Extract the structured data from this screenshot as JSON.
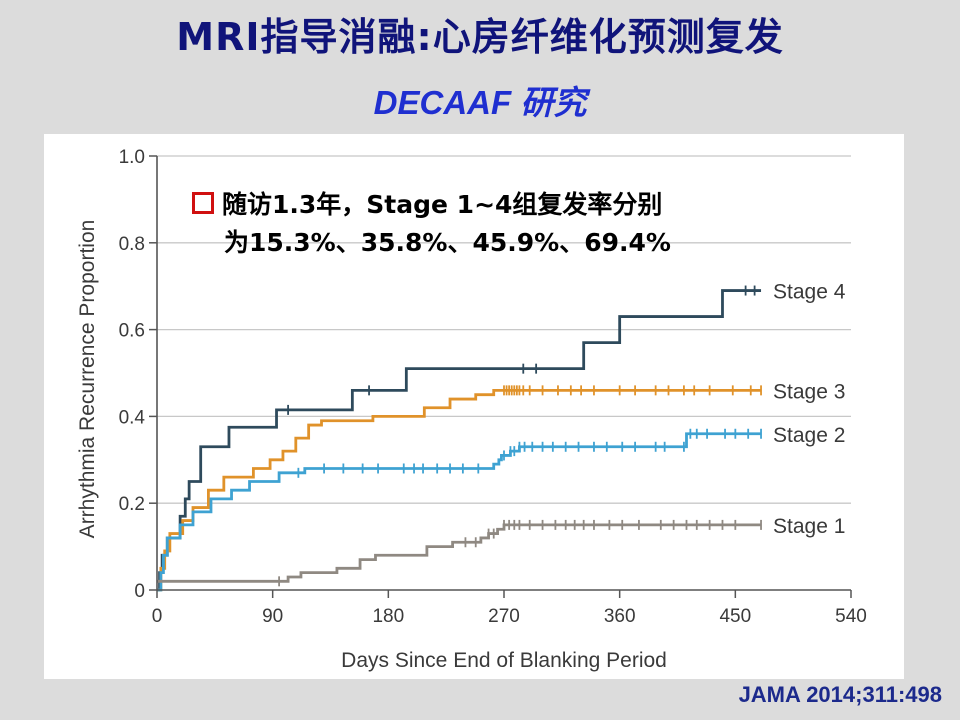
{
  "slide": {
    "title": "MRI指导消融:心房纤维化预测复发",
    "subtitle": "DECAAF 研究",
    "citation": "JAMA 2014;311:498"
  },
  "annotation": {
    "line1": "随访1.3年，Stage 1~4组复发率分别",
    "line2": "为15.3%、35.8%、45.9%、69.4%"
  },
  "chart_data": {
    "type": "line",
    "step": true,
    "xlabel": "Days Since End of Blanking Period",
    "ylabel": "Arrhythmia Recurrence Proportion",
    "xlim": [
      0,
      540
    ],
    "ylim": [
      0,
      1.0
    ],
    "xticks": [
      0,
      90,
      180,
      270,
      360,
      450,
      540
    ],
    "yticks": [
      0,
      0.2,
      0.4,
      0.6,
      0.8,
      1.0
    ],
    "ytick_labels": [
      "0",
      "0.2",
      "0.4",
      "0.6",
      "0.8",
      "1.0"
    ],
    "grid": "horizontal",
    "series": [
      {
        "name": "Stage 4",
        "color": "#2e4a5c",
        "points": [
          [
            0,
            0
          ],
          [
            2,
            0.04
          ],
          [
            4,
            0.08
          ],
          [
            8,
            0.12
          ],
          [
            18,
            0.17
          ],
          [
            22,
            0.21
          ],
          [
            25,
            0.25
          ],
          [
            34,
            0.33
          ],
          [
            56,
            0.375
          ],
          [
            93,
            0.415
          ],
          [
            152,
            0.46
          ],
          [
            194,
            0.51
          ],
          [
            332,
            0.57
          ],
          [
            360,
            0.63
          ],
          [
            440,
            0.69
          ],
          [
            470,
            0.69
          ]
        ],
        "censors": [
          102,
          165,
          285,
          295,
          458,
          465
        ]
      },
      {
        "name": "Stage 3",
        "color": "#e0922a",
        "points": [
          [
            0,
            0
          ],
          [
            3,
            0.05
          ],
          [
            6,
            0.09
          ],
          [
            10,
            0.13
          ],
          [
            20,
            0.16
          ],
          [
            28,
            0.19
          ],
          [
            40,
            0.23
          ],
          [
            52,
            0.26
          ],
          [
            75,
            0.28
          ],
          [
            88,
            0.3
          ],
          [
            98,
            0.32
          ],
          [
            108,
            0.35
          ],
          [
            118,
            0.38
          ],
          [
            128,
            0.39
          ],
          [
            168,
            0.4
          ],
          [
            208,
            0.42
          ],
          [
            228,
            0.44
          ],
          [
            248,
            0.45
          ],
          [
            262,
            0.46
          ],
          [
            470,
            0.46
          ]
        ],
        "censors": [
          270,
          272,
          274,
          276,
          278,
          280,
          282,
          285,
          290,
          300,
          312,
          322,
          330,
          340,
          360,
          372,
          388,
          398,
          410,
          418,
          430,
          448,
          462,
          470
        ]
      },
      {
        "name": "Stage 2",
        "color": "#3ea2d2",
        "points": [
          [
            0,
            0
          ],
          [
            3,
            0.04
          ],
          [
            5,
            0.08
          ],
          [
            8,
            0.12
          ],
          [
            18,
            0.15
          ],
          [
            28,
            0.18
          ],
          [
            42,
            0.21
          ],
          [
            58,
            0.23
          ],
          [
            72,
            0.25
          ],
          [
            95,
            0.27
          ],
          [
            115,
            0.28
          ],
          [
            190,
            0.28
          ],
          [
            255,
            0.28
          ],
          [
            262,
            0.29
          ],
          [
            266,
            0.3
          ],
          [
            268,
            0.31
          ],
          [
            275,
            0.32
          ],
          [
            282,
            0.33
          ],
          [
            405,
            0.33
          ],
          [
            412,
            0.36
          ],
          [
            470,
            0.36
          ]
        ],
        "censors": [
          110,
          130,
          145,
          160,
          172,
          192,
          200,
          207,
          218,
          228,
          238,
          250,
          270,
          275,
          278,
          282,
          286,
          292,
          300,
          308,
          318,
          328,
          340,
          350,
          362,
          372,
          388,
          395,
          410,
          415,
          420,
          428,
          442,
          450,
          460,
          470
        ]
      },
      {
        "name": "Stage 1",
        "color": "#8f8982",
        "points": [
          [
            0,
            0.02
          ],
          [
            100,
            0.02
          ],
          [
            102,
            0.03
          ],
          [
            112,
            0.04
          ],
          [
            140,
            0.05
          ],
          [
            158,
            0.07
          ],
          [
            170,
            0.08
          ],
          [
            210,
            0.1
          ],
          [
            230,
            0.11
          ],
          [
            252,
            0.12
          ],
          [
            258,
            0.13
          ],
          [
            265,
            0.14
          ],
          [
            270,
            0.15
          ],
          [
            470,
            0.15
          ]
        ],
        "censors": [
          95,
          240,
          248,
          258,
          262,
          270,
          274,
          278,
          282,
          290,
          300,
          310,
          318,
          325,
          332,
          340,
          352,
          362,
          375,
          392,
          402,
          412,
          420,
          430,
          440,
          450,
          470
        ]
      }
    ]
  }
}
